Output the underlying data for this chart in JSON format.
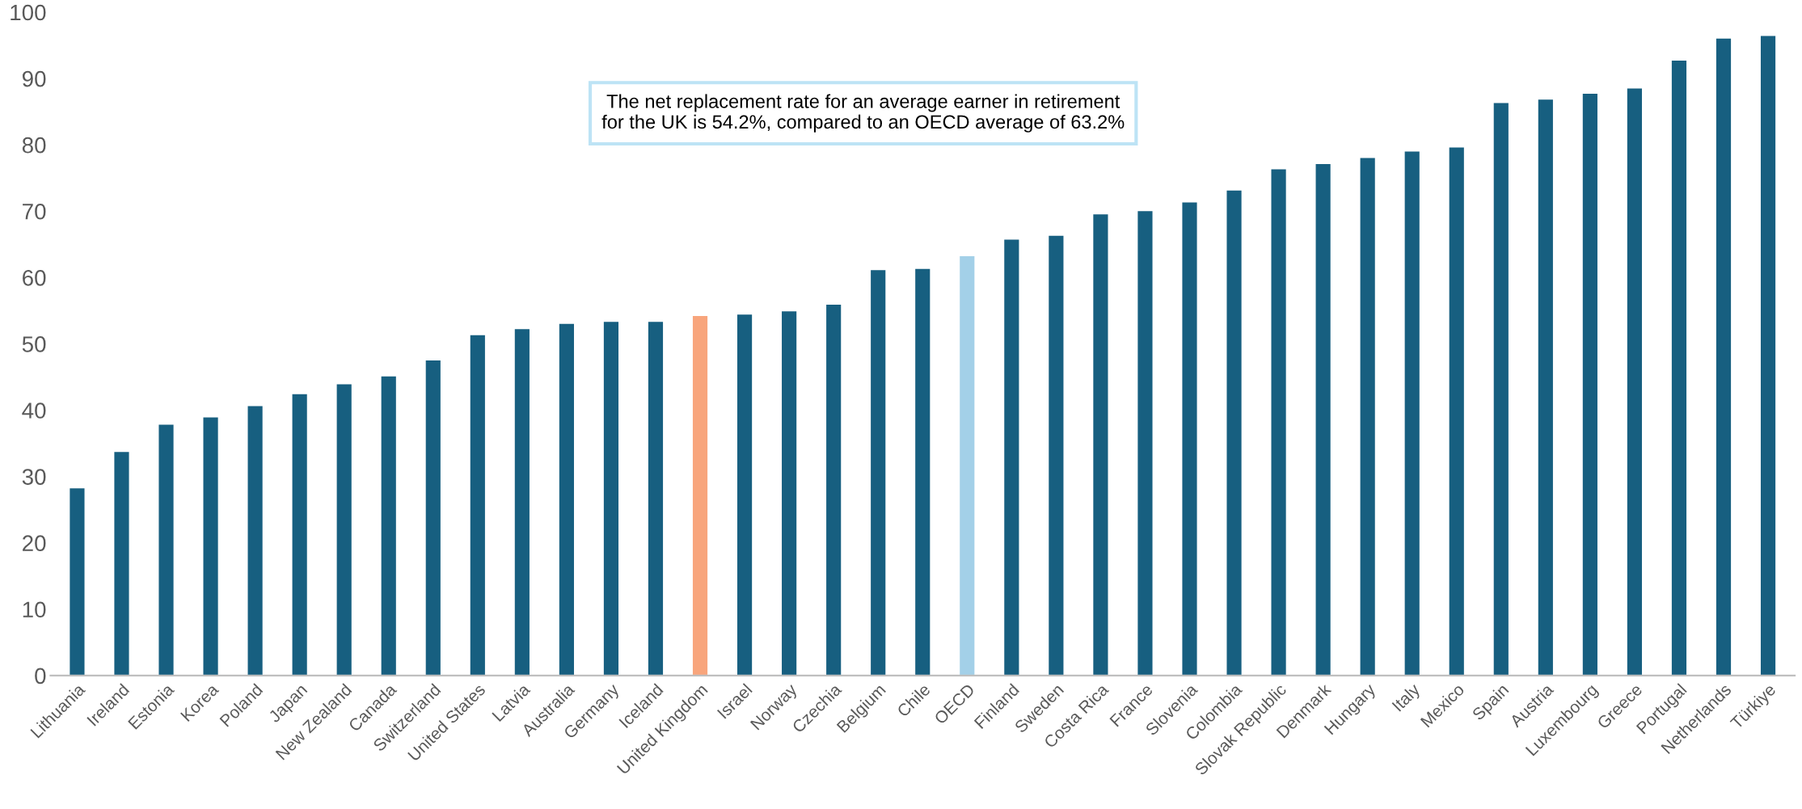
{
  "chart_data": {
    "type": "bar",
    "categories": [
      "Lithuania",
      "Ireland",
      "Estonia",
      "Korea",
      "Poland",
      "Japan",
      "New Zealand",
      "Canada",
      "Switzerland",
      "United States",
      "Latvia",
      "Australia",
      "Germany",
      "Iceland",
      "United Kingdom",
      "Israel",
      "Norway",
      "Czechia",
      "Belgium",
      "Chile",
      "OECD",
      "Finland",
      "Sweden",
      "Costa Rica",
      "France",
      "Slovenia",
      "Colombia",
      "Slovak Republic",
      "Denmark",
      "Hungary",
      "Italy",
      "Mexico",
      "Spain",
      "Austria",
      "Luxembourg",
      "Greece",
      "Portugal",
      "Netherlands",
      "Türkiye"
    ],
    "values": [
      28.2,
      33.7,
      37.8,
      38.9,
      40.6,
      42.4,
      43.9,
      45.1,
      47.5,
      51.3,
      52.2,
      53.0,
      53.3,
      53.3,
      54.2,
      54.4,
      54.9,
      55.9,
      61.1,
      61.3,
      63.2,
      65.7,
      66.3,
      69.5,
      70.0,
      71.3,
      73.1,
      76.3,
      77.1,
      78.0,
      79.0,
      79.6,
      86.3,
      86.8,
      87.7,
      88.5,
      92.7,
      96.0,
      96.4
    ],
    "colors": [
      "#175f80",
      "#175f80",
      "#175f80",
      "#175f80",
      "#175f80",
      "#175f80",
      "#175f80",
      "#175f80",
      "#175f80",
      "#175f80",
      "#175f80",
      "#175f80",
      "#175f80",
      "#175f80",
      "#f8a57c",
      "#175f80",
      "#175f80",
      "#175f80",
      "#175f80",
      "#175f80",
      "#a3d0e8",
      "#175f80",
      "#175f80",
      "#175f80",
      "#175f80",
      "#175f80",
      "#175f80",
      "#175f80",
      "#175f80",
      "#175f80",
      "#175f80",
      "#175f80",
      "#175f80",
      "#175f80",
      "#175f80",
      "#175f80",
      "#175f80",
      "#175f80",
      "#175f80"
    ],
    "ylim": [
      0,
      100
    ],
    "yticks": [
      0,
      10,
      20,
      30,
      40,
      50,
      60,
      70,
      80,
      90,
      100
    ],
    "grid": false,
    "legend": false,
    "annotations": [
      "The net replacement rate for an average earner in retirement for the UK is 54.2%, compared to an OECD average of 63.2%"
    ]
  }
}
